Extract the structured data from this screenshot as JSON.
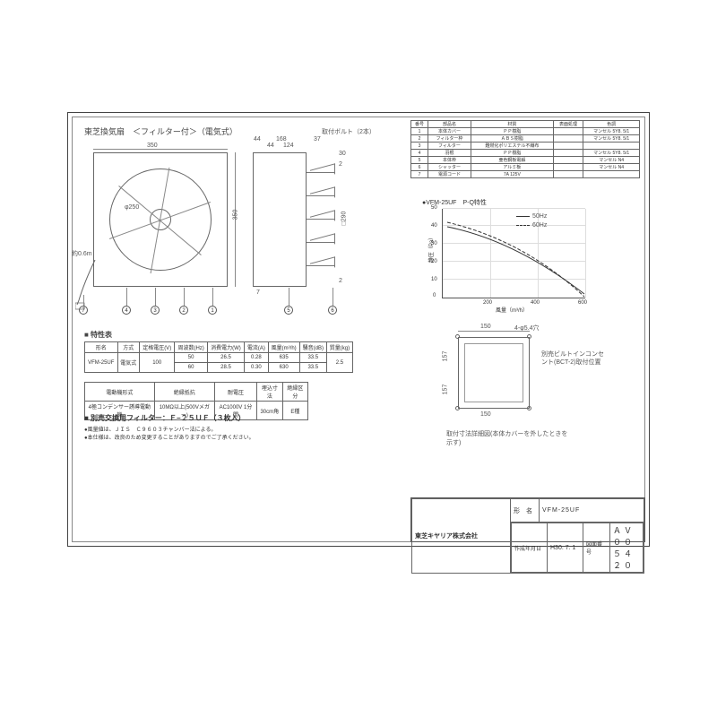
{
  "title": "東芝換気扇　＜フィルター付＞（電気式）",
  "drawing": {
    "width_mm": 350,
    "height_mm": 350,
    "fan_dia": "φ250",
    "cord_len": "約0.6m",
    "dims_top": {
      "d44_1": "44",
      "d44_2": "44",
      "d168": "168",
      "d124": "124",
      "d37": "37",
      "d150": "150"
    },
    "mount_bolt": "取付ボルト（2本）",
    "opening": "□290",
    "side_gap_top": "30",
    "side_gap1": "2",
    "side_gap2": "2",
    "side_bottom_h": "7"
  },
  "callouts": {
    "c1": "1",
    "c2": "2",
    "c3": "3",
    "c4": "4",
    "c5": "5",
    "c6": "6",
    "c7": "7"
  },
  "spec": {
    "heading": "■ 特性表",
    "cols": [
      "形名",
      "方式",
      "定格電圧(V)",
      "周波数(Hz)",
      "消費電力(W)",
      "電流(A)",
      "風量(m³/h)",
      "騒音(dB)",
      "質量(kg)"
    ],
    "model": "VFM-25UF",
    "type": "電気式",
    "volt": "100",
    "rows": [
      {
        "hz": "50",
        "w": "26.5",
        "a": "0.28",
        "flow": "635",
        "db": "33.5"
      },
      {
        "hz": "60",
        "w": "28.5",
        "a": "0.30",
        "flow": "630",
        "db": "33.5"
      }
    ],
    "mass": "2.5"
  },
  "spec2": {
    "cols": [
      "電動機形式",
      "絶縁抵抗",
      "耐電圧",
      "埋込寸法",
      "絶縁区分"
    ],
    "vals": [
      "4極コンデンサー誘導電動機",
      "10MΩ以上(500Vメガー)",
      "AC1000V 1分間",
      "30cm角",
      "E種"
    ]
  },
  "filter": {
    "heading": "■ 別売交換用フィルター：Ｆ−２５ＵＦ（３枚入）",
    "notes": [
      "●風量値は、ＪＩＳ　Ｃ９６０３チャンバー法による。",
      "●本仕様は、改良のため変更することがありますのでご了承ください。"
    ]
  },
  "parts": {
    "cols": [
      "番号",
      "部品名",
      "材質",
      "表面処理",
      "色調"
    ],
    "rows": [
      [
        "1",
        "本体カバー",
        "ＰＰ樹脂",
        "",
        "マンセル 5Y8. 5/1"
      ],
      [
        "2",
        "フィルター枠",
        "ＡＢＳ樹脂",
        "",
        "マンセル 5Y8. 5/1"
      ],
      [
        "3",
        "フィルター",
        "難燃化ポリエステル不織布",
        "",
        ""
      ],
      [
        "4",
        "羽根",
        "ＰＰ樹脂",
        "",
        "マンセル 5Y8. 5/1"
      ],
      [
        "5",
        "本体枠",
        "亜色鋼板電解",
        "",
        "マンセル N4"
      ],
      [
        "6",
        "シャッター",
        "アルミ板",
        "",
        "マンセル N4"
      ],
      [
        "7",
        "電源コード",
        "7A 125V",
        "",
        ""
      ]
    ]
  },
  "chart": {
    "title": "●VFM-25UF　P-Q特性",
    "ylabel": "静圧（Pa）",
    "xlabel": "風量（m³/h）",
    "x_ticks": [
      "200",
      "400",
      "600"
    ],
    "y_ticks": [
      "0",
      "10",
      "20",
      "30",
      "40",
      "50"
    ],
    "legend_50": "50Hz",
    "legend_60": "60Hz",
    "line50_svg": "M 5 20 Q 80 35 158 95",
    "line60_svg": "M 5 15 Q 90 35 158 98",
    "line50_dash": "none",
    "line60_dash": "4 2",
    "line_color": "#333"
  },
  "mount": {
    "w": "150",
    "h": "157",
    "h2": "157",
    "holes": "4-φ5.4穴",
    "note": "別売ビルトインコンセント(BCT-2)取付位置",
    "caption": "取付寸法詳細図(本体カバーを外したときを示す)",
    "inner_w": "150"
  },
  "title_block": {
    "company": "東芝キヤリア株式会社",
    "model_label": "形　名",
    "model": "VFM-25UF",
    "date_label": "作成年月日",
    "date": "H30. 7. 1",
    "no_label": "図面番号",
    "no": "ＡＶ００５４２０"
  }
}
